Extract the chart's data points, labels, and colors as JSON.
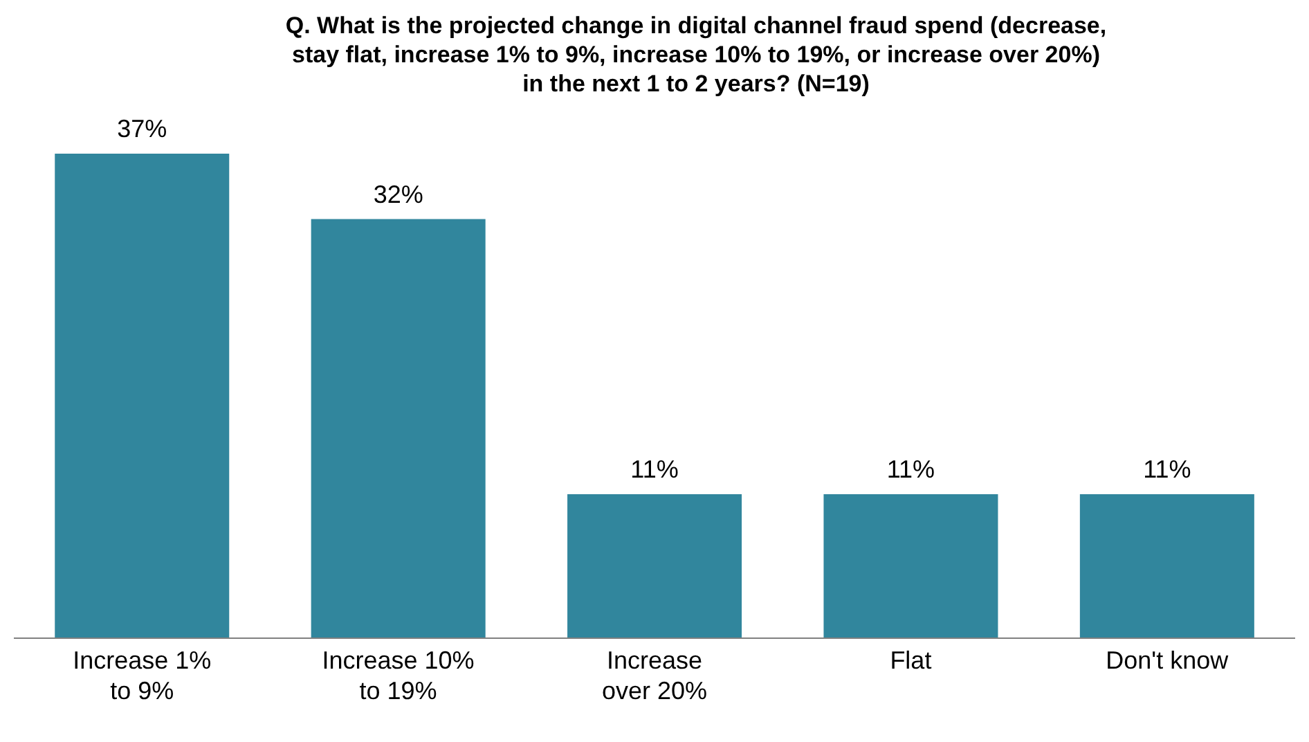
{
  "chart_data": {
    "type": "bar",
    "title": "Q. What is the projected change in digital channel fraud spend (decrease, stay flat, increase 1% to 9%, increase 10% to 19%, or increase over 20%) in the next 1 to 2 years? (N=19)",
    "categories": [
      "Increase 1% to 9%",
      "Increase 10% to 19%",
      "Increase over 20%",
      "Flat",
      "Don't know"
    ],
    "values": [
      37,
      32,
      11,
      11,
      11
    ],
    "value_labels": [
      "37%",
      "32%",
      "11%",
      "11%",
      "11%"
    ],
    "color": "#31869d"
  }
}
